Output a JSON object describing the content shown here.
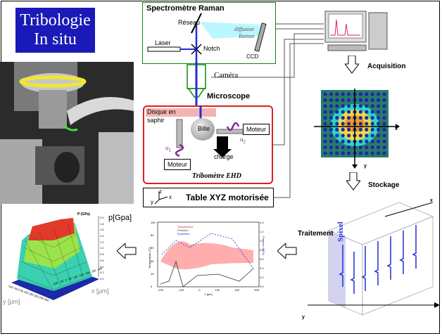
{
  "title": {
    "line1": "Tribologie",
    "line2": "In situ"
  },
  "raman": {
    "title": "Spectromètre Raman",
    "reseau": "Réseau",
    "laser": "Laser",
    "notch": "Notch",
    "diffusion1": "diffusion",
    "diffusion2": "Raman",
    "ccd": "CCD"
  },
  "camera": "Caméra",
  "microscope": "Microscope",
  "tribometre": {
    "disque1": "Disque en",
    "disque2": "saphir",
    "bille": "Bille",
    "moteur_right": "Moteur",
    "moteur_left": "Moteur",
    "charge": "charge",
    "u1": "u",
    "u1_sub": "1",
    "u2": "u",
    "u2_sub": "2",
    "name": "Tribomètre EHD"
  },
  "table_xyz": {
    "label": "Table XYZ motorisée",
    "axis_z": "z",
    "axis_x": "x",
    "axis_y": "y"
  },
  "steps": {
    "acquisition": "Acquisition",
    "stockage": "Stockage",
    "traitement": "Traitement"
  },
  "map_axes": {
    "x": "x",
    "y": "y"
  },
  "cube": {
    "spixel": "Spixel",
    "axis_x": "x",
    "axis_y": "y"
  },
  "surface_plot": {
    "zlabel_top": "P (GPa)",
    "zlabel_right": "p[Gpa]",
    "z_ticks": [
      "2.0",
      "1.8",
      "1.6",
      "1.4",
      "1.2",
      "1.0",
      "0.8",
      "0.6",
      "0.4",
      "0.2",
      "0.0"
    ],
    "x_label": "x [µm]",
    "y_label": "y [µm]",
    "x_ticks": [
      "-100",
      "-50",
      "0",
      "50",
      "100",
      "150",
      "200",
      "250",
      "300"
    ],
    "y_ticks": [
      "-100",
      "-50",
      "0",
      "50",
      "100",
      "150",
      "200",
      "250",
      "300"
    ]
  },
  "profile_plot": {
    "legend": [
      "Température",
      "Pression",
      "Epaisseur"
    ],
    "ylabel_left": "Temperature (°C)",
    "ylabel_right": "Pression (GPa)",
    "xlabel": "Y [µm]",
    "x_ticks": [
      "-200",
      "-100",
      "0",
      "100",
      "200",
      "300"
    ],
    "y_ticks_left": [
      "100",
      "80",
      "60",
      "40",
      "20",
      "0"
    ],
    "y_ticks_right": [
      "1.4",
      "1.2",
      "1.0",
      "0.8",
      "0.6",
      "0.4",
      "0.2",
      "0.0"
    ]
  },
  "colors": {
    "title_bg": "#1a1ab8",
    "raman_border": "#0a8a0a",
    "tribo_border": "#e0201e",
    "beam": "#1e2fd6",
    "laser_spot": "#9ef3ff"
  }
}
